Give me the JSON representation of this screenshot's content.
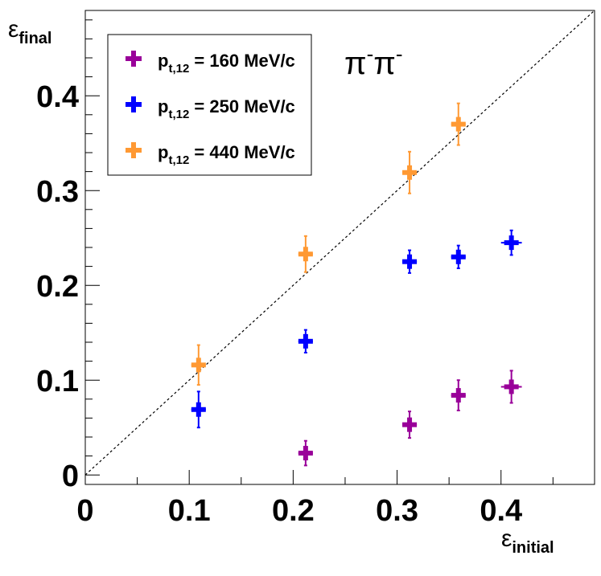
{
  "chart_data": {
    "type": "scatter",
    "title": "π⁻π⁻",
    "title_main": "π",
    "title_sup": "-",
    "xlabel": "ε",
    "xlabel_sub": "initial",
    "ylabel": "ε",
    "ylabel_sub": "final",
    "xlim": [
      0,
      0.49
    ],
    "ylim": [
      -0.01,
      0.49
    ],
    "x_ticks": [
      0,
      0.1,
      0.2,
      0.3,
      0.4
    ],
    "x_tick_labels": [
      "0",
      "0.1",
      "0.2",
      "0.3",
      "0.4"
    ],
    "y_ticks": [
      0,
      0.1,
      0.2,
      0.3,
      0.4
    ],
    "y_tick_labels": [
      "0",
      "0.1",
      "0.2",
      "0.3",
      "0.4"
    ],
    "x_minor_step": 0.05,
    "y_minor_step": 0.02,
    "diagonal": "y = x (dashed)",
    "legend_placement": "top-left",
    "series": [
      {
        "name": "p_t,12 = 160 MeV/c",
        "label_prefix": "p",
        "label_sub": "t,12",
        "label_suffix": " = 160 MeV/c",
        "color": "#990099",
        "points": [
          {
            "x": 0.212,
            "y": 0.023,
            "xerr": 0.007,
            "yerr": 0.013
          },
          {
            "x": 0.312,
            "y": 0.053,
            "xerr": 0.007,
            "yerr": 0.014
          },
          {
            "x": 0.359,
            "y": 0.084,
            "xerr": 0.007,
            "yerr": 0.016
          },
          {
            "x": 0.41,
            "y": 0.093,
            "xerr": 0.01,
            "yerr": 0.017
          }
        ]
      },
      {
        "name": "p_t,12 = 250 MeV/c",
        "label_prefix": "p",
        "label_sub": "t,12",
        "label_suffix": " = 250 MeV/c",
        "color": "#0000ff",
        "points": [
          {
            "x": 0.109,
            "y": 0.069,
            "xerr": 0.007,
            "yerr": 0.019
          },
          {
            "x": 0.212,
            "y": 0.141,
            "xerr": 0.007,
            "yerr": 0.012
          },
          {
            "x": 0.312,
            "y": 0.225,
            "xerr": 0.007,
            "yerr": 0.012
          },
          {
            "x": 0.359,
            "y": 0.23,
            "xerr": 0.007,
            "yerr": 0.012
          },
          {
            "x": 0.41,
            "y": 0.245,
            "xerr": 0.01,
            "yerr": 0.013
          }
        ]
      },
      {
        "name": "p_t,12 = 440 MeV/c",
        "label_prefix": "p",
        "label_sub": "t,12",
        "label_suffix": " = 440 MeV/c",
        "color": "#ff9933",
        "points": [
          {
            "x": 0.109,
            "y": 0.116,
            "xerr": 0.007,
            "yerr": 0.021
          },
          {
            "x": 0.212,
            "y": 0.233,
            "xerr": 0.007,
            "yerr": 0.019
          },
          {
            "x": 0.312,
            "y": 0.319,
            "xerr": 0.007,
            "yerr": 0.022
          },
          {
            "x": 0.359,
            "y": 0.37,
            "xerr": 0.007,
            "yerr": 0.022
          }
        ]
      }
    ]
  }
}
